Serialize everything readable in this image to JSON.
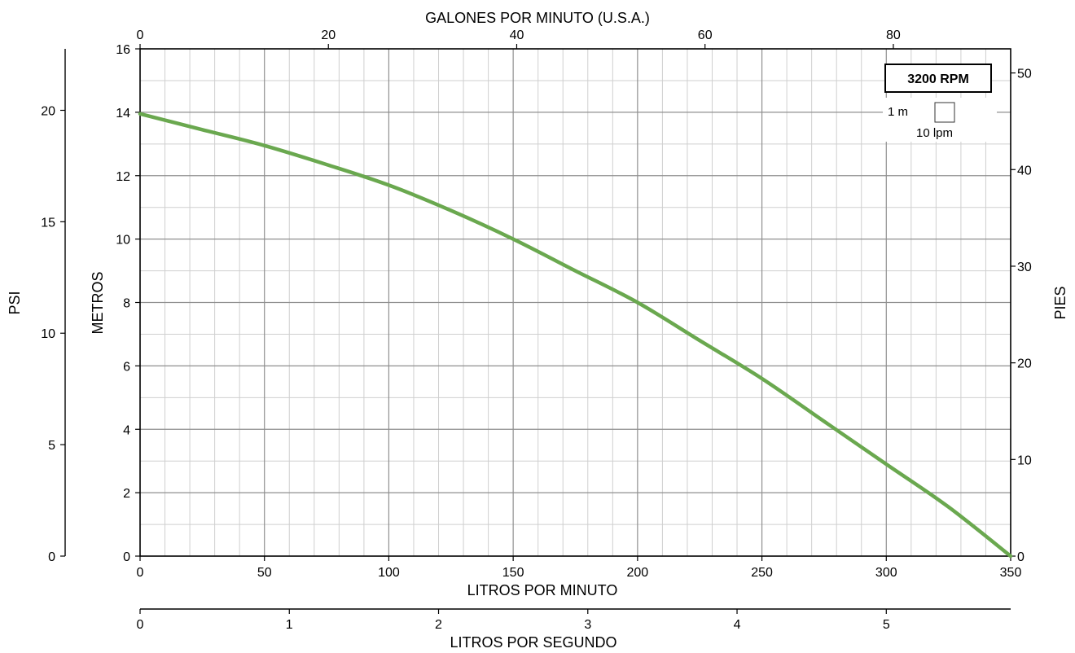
{
  "chart_data": {
    "type": "line",
    "title": "",
    "grid": true,
    "legend_placement": "top-right",
    "legend_label": "3200 RPM",
    "scale_note": {
      "vertical": "1 m",
      "horizontal": "10 lpm"
    },
    "curve_color": "#6aa84f",
    "x": {
      "label": "LITROS POR MINUTO",
      "unit": "lpm",
      "range": [
        0,
        350
      ],
      "ticks": [
        0,
        50,
        100,
        150,
        200,
        250,
        300,
        350
      ]
    },
    "x_top": {
      "label": "GALONES POR MINUTO (U.S.A.)",
      "ticks": [
        "0",
        "20",
        "40",
        "60",
        "80"
      ]
    },
    "x_bottom": {
      "label": "LITROS POR SEGUNDO",
      "ticks": [
        "0",
        "1",
        "2",
        "3",
        "4",
        "5"
      ]
    },
    "y": {
      "label": "METROS",
      "unit": "m",
      "range": [
        0,
        16
      ],
      "ticks": [
        0,
        2,
        4,
        6,
        8,
        10,
        12,
        14,
        16
      ]
    },
    "y_left_outer": {
      "label": "PSI",
      "ticks": [
        "0",
        "5",
        "10",
        "15",
        "20"
      ]
    },
    "y_right": {
      "label": "PIES",
      "ticks": [
        "0",
        "10",
        "20",
        "30",
        "40",
        "50"
      ]
    },
    "series": [
      {
        "name": "3200 RPM",
        "points": [
          [
            0,
            13.95
          ],
          [
            25,
            13.45
          ],
          [
            50,
            12.95
          ],
          [
            75,
            12.35
          ],
          [
            100,
            11.7
          ],
          [
            125,
            10.9
          ],
          [
            150,
            10.0
          ],
          [
            175,
            9.0
          ],
          [
            200,
            8.0
          ],
          [
            225,
            6.8
          ],
          [
            250,
            5.6
          ],
          [
            275,
            4.25
          ],
          [
            300,
            2.9
          ],
          [
            325,
            1.55
          ],
          [
            350,
            0.0
          ]
        ]
      }
    ]
  }
}
